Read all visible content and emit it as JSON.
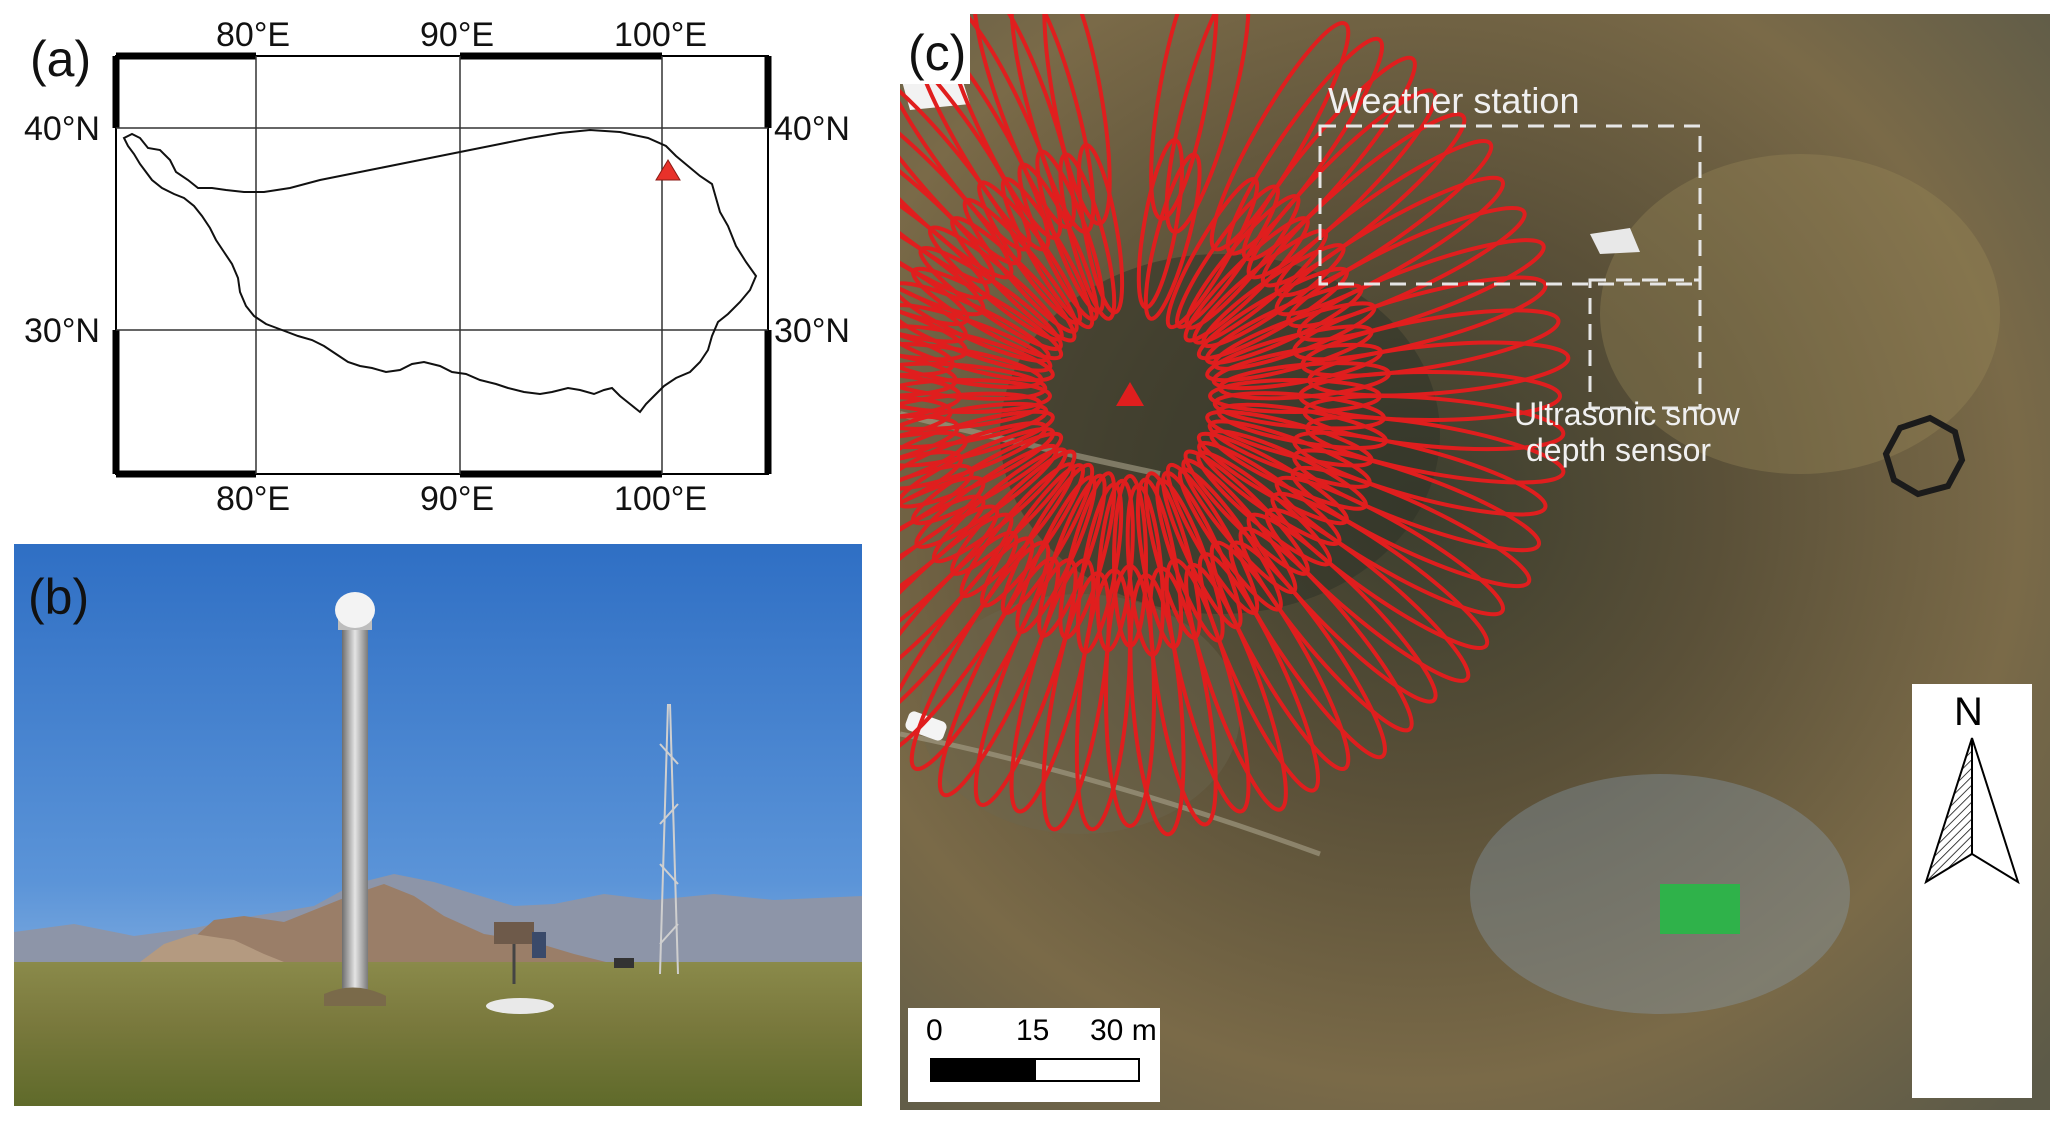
{
  "panel_a": {
    "label": "(a)",
    "lon_ticks": [
      "80°E",
      "90°E",
      "100°E"
    ],
    "lat_ticks": [
      "40°N",
      "30°N"
    ],
    "site_marker_color": "#e8312a"
  },
  "panel_b": {
    "label": "(b)"
  },
  "panel_c": {
    "label": "(c)",
    "weather_station_label": "Weather station",
    "snow_sensor_label_line1": "Ultrasonic snow",
    "snow_sensor_label_line2": "depth sensor",
    "scale_bar": {
      "ticks": [
        "0",
        "15",
        "30 m"
      ]
    },
    "north_arrow": "N",
    "footprint_color": "#e01e1e"
  }
}
